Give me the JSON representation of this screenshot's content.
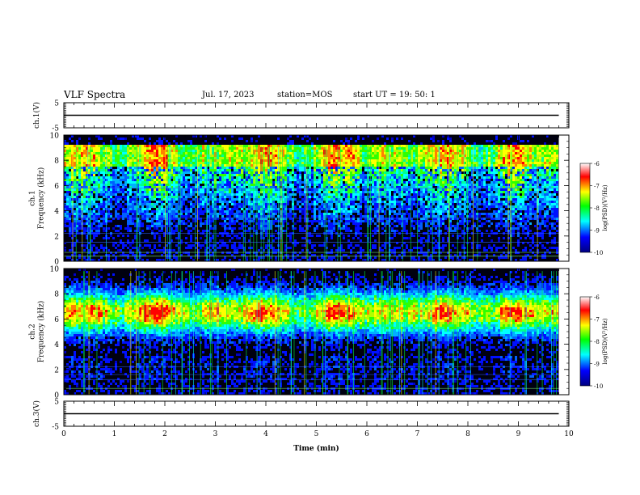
{
  "header": {
    "title": "VLF Spectra",
    "date": "Jul. 17, 2023",
    "station": "station=MOS",
    "start_ut": "start UT = 19: 50: 1"
  },
  "chart_data": [
    {
      "type": "line",
      "id": "ch1-waveform",
      "ylabel": "ch.1(V)",
      "yticks": [
        "5",
        "-5"
      ],
      "ylim": [
        -5,
        5
      ],
      "xlim": [
        0,
        10
      ],
      "x": [
        0,
        9.8
      ],
      "values": [
        0,
        0
      ]
    },
    {
      "type": "heatmap",
      "id": "ch1-spectrogram",
      "ylabel": "ch.1 Frequency (kHz)",
      "ylabel_lines": [
        "ch.1",
        "Frequency (kHz)"
      ],
      "yticks": [
        "0",
        "2",
        "4",
        "6",
        "8",
        "10"
      ],
      "ylim": [
        0,
        10
      ],
      "xlim": [
        0,
        10
      ],
      "data_extent_min": 9.8,
      "emission_band_khz": [
        1.2,
        9.2
      ],
      "colorbar": {
        "label": "log(PSD)(V²/Hz)",
        "ticks": [
          "-6",
          "-7",
          "-8",
          "-9",
          "-10"
        ],
        "range": [
          -10,
          -6
        ],
        "colors": [
          "#000080",
          "#0000ff",
          "#00ffff",
          "#00ff00",
          "#ffff00",
          "#ff0000",
          "#ffffff"
        ]
      }
    },
    {
      "type": "heatmap",
      "id": "ch2-spectrogram",
      "ylabel": "ch.2 Frequency (kHz)",
      "ylabel_lines": [
        "ch.2",
        "Frequency (kHz)"
      ],
      "yticks": [
        "0",
        "2",
        "4",
        "6",
        "8",
        "10"
      ],
      "ylim": [
        0,
        10
      ],
      "xlim": [
        0,
        10
      ],
      "data_extent_min": 9.8,
      "emission_peak_khz": 6.6,
      "colorbar": {
        "label": "log(PSD)(V²/Hz)",
        "ticks": [
          "-6",
          "-7",
          "-8",
          "-9",
          "-10"
        ],
        "range": [
          -10,
          -6
        ],
        "colors": [
          "#000080",
          "#0000ff",
          "#00ffff",
          "#00ff00",
          "#ffff00",
          "#ff0000",
          "#ffffff"
        ]
      }
    },
    {
      "type": "line",
      "id": "ch3-waveform",
      "ylabel": "ch.3(V)",
      "yticks": [
        "5",
        "-5"
      ],
      "ylim": [
        -5,
        5
      ],
      "xlim": [
        0,
        10
      ],
      "x": [
        0,
        9.8
      ],
      "values": [
        0,
        0
      ]
    }
  ],
  "xaxis": {
    "label": "Time (min)",
    "ticks": [
      "0",
      "1",
      "2",
      "3",
      "4",
      "5",
      "6",
      "7",
      "8",
      "9",
      "10"
    ]
  }
}
